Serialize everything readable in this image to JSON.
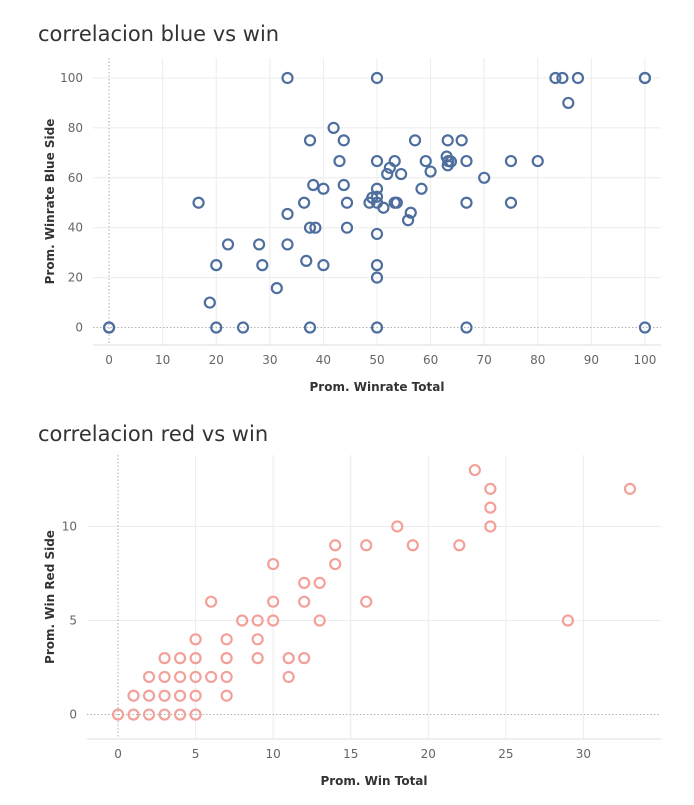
{
  "chart_data": [
    {
      "type": "scatter",
      "title": "correlacion blue vs win",
      "xlabel": "Prom. Winrate Total",
      "ylabel": "Prom. Winrate Blue Side",
      "xlim": [
        -3,
        103
      ],
      "ylim": [
        -7,
        108
      ],
      "xticks": [
        0,
        10,
        20,
        30,
        40,
        50,
        60,
        70,
        80,
        90,
        100
      ],
      "yticks": [
        0,
        20,
        40,
        60,
        80,
        100
      ],
      "grid": true,
      "marker": "hollow-circle",
      "color": "#4e6e9e",
      "points": [
        [
          0,
          0
        ],
        [
          0,
          0
        ],
        [
          20,
          0
        ],
        [
          25,
          0
        ],
        [
          37.5,
          0
        ],
        [
          50,
          0
        ],
        [
          66.7,
          0
        ],
        [
          100,
          0
        ],
        [
          18.8,
          10
        ],
        [
          31.3,
          15.8
        ],
        [
          20,
          25
        ],
        [
          28.6,
          25
        ],
        [
          36.8,
          26.7
        ],
        [
          40,
          25
        ],
        [
          50,
          25
        ],
        [
          50,
          20
        ],
        [
          22.2,
          33.3
        ],
        [
          28,
          33.3
        ],
        [
          33.3,
          33.3
        ],
        [
          16.7,
          50
        ],
        [
          33.3,
          45.5
        ],
        [
          36.4,
          50
        ],
        [
          37.5,
          40
        ],
        [
          38.5,
          40
        ],
        [
          44.4,
          40
        ],
        [
          50,
          37.5
        ],
        [
          44.4,
          50
        ],
        [
          48.6,
          50
        ],
        [
          50,
          50
        ],
        [
          49.1,
          52
        ],
        [
          50,
          52.4
        ],
        [
          50,
          55.6
        ],
        [
          51.2,
          48
        ],
        [
          53.3,
          50
        ],
        [
          53.7,
          50
        ],
        [
          55.8,
          43
        ],
        [
          56.3,
          46
        ],
        [
          58.3,
          55.6
        ],
        [
          66.7,
          50
        ],
        [
          75,
          50
        ],
        [
          38.1,
          57.1
        ],
        [
          40,
          55.6
        ],
        [
          43.8,
          57.1
        ],
        [
          54.5,
          61.5
        ],
        [
          51.9,
          61.5
        ],
        [
          52.4,
          64
        ],
        [
          53.3,
          66.7
        ],
        [
          50,
          66.7
        ],
        [
          43,
          66.7
        ],
        [
          59.1,
          66.7
        ],
        [
          60,
          62.5
        ],
        [
          63.2,
          65
        ],
        [
          63.3,
          66.7
        ],
        [
          63.8,
          66.5
        ],
        [
          63,
          68.5
        ],
        [
          66.7,
          66.7
        ],
        [
          75,
          66.7
        ],
        [
          80,
          66.7
        ],
        [
          70,
          60
        ],
        [
          37.5,
          75
        ],
        [
          41.9,
          80
        ],
        [
          43.8,
          75
        ],
        [
          57.1,
          75
        ],
        [
          63.2,
          75
        ],
        [
          65.8,
          75
        ],
        [
          33.3,
          100
        ],
        [
          50,
          100
        ],
        [
          83.3,
          100
        ],
        [
          84.6,
          100
        ],
        [
          87.5,
          100
        ],
        [
          85.7,
          90
        ],
        [
          100,
          100
        ],
        [
          100,
          100
        ]
      ]
    },
    {
      "type": "scatter",
      "title": "correlacion red vs win",
      "xlabel": "Prom. Win Total",
      "ylabel": "Prom. Win Red Side",
      "xlim": [
        -2,
        35
      ],
      "ylim": [
        -1.3,
        13.8
      ],
      "xticks": [
        0,
        5,
        10,
        15,
        20,
        25,
        30
      ],
      "yticks": [
        0,
        5,
        10
      ],
      "grid": true,
      "marker": "hollow-circle",
      "color": "#f4a09a",
      "points": [
        [
          0,
          0
        ],
        [
          1,
          0
        ],
        [
          2,
          0
        ],
        [
          3,
          0
        ],
        [
          4,
          0
        ],
        [
          5,
          0
        ],
        [
          1,
          1
        ],
        [
          2,
          1
        ],
        [
          3,
          1
        ],
        [
          4,
          1
        ],
        [
          5,
          1
        ],
        [
          7,
          1
        ],
        [
          2,
          2
        ],
        [
          3,
          2
        ],
        [
          4,
          2
        ],
        [
          5,
          2
        ],
        [
          6,
          2
        ],
        [
          7,
          2
        ],
        [
          11,
          2
        ],
        [
          3,
          3
        ],
        [
          4,
          3
        ],
        [
          5,
          3
        ],
        [
          7,
          3
        ],
        [
          9,
          3
        ],
        [
          11,
          3
        ],
        [
          12,
          3
        ],
        [
          5,
          4
        ],
        [
          7,
          4
        ],
        [
          9,
          4
        ],
        [
          8,
          5
        ],
        [
          9,
          5
        ],
        [
          10,
          5
        ],
        [
          13,
          5
        ],
        [
          29,
          5
        ],
        [
          6,
          6
        ],
        [
          10,
          6
        ],
        [
          12,
          6
        ],
        [
          16,
          6
        ],
        [
          12,
          7
        ],
        [
          13,
          7
        ],
        [
          10,
          8
        ],
        [
          14,
          8
        ],
        [
          14,
          9
        ],
        [
          16,
          9
        ],
        [
          19,
          9
        ],
        [
          22,
          9
        ],
        [
          18,
          10
        ],
        [
          24,
          10
        ],
        [
          24,
          11
        ],
        [
          24,
          12
        ],
        [
          33,
          12
        ],
        [
          23,
          13
        ]
      ]
    }
  ]
}
